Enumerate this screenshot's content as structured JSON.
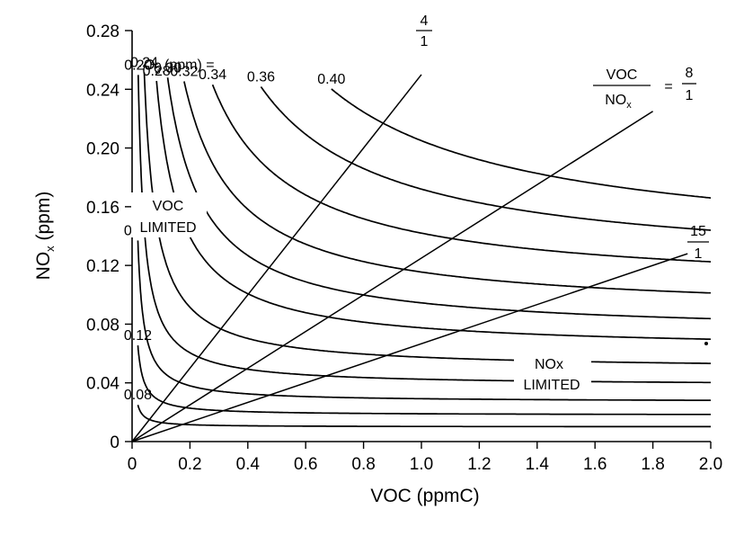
{
  "chart_data": {
    "type": "line",
    "title": "",
    "xlabel": "VOC (ppmC)",
    "ylabel_main": "NO",
    "ylabel_sub": "x",
    "ylabel_unit": " (ppm)",
    "xlim": [
      0,
      2.0
    ],
    "ylim": [
      0,
      0.28
    ],
    "xticks": [
      "0",
      "0.2",
      "0.4",
      "0.6",
      "0.8",
      "1.0",
      "1.2",
      "1.4",
      "1.6",
      "1.8",
      "2.0"
    ],
    "yticks": [
      "0",
      "0.04",
      "0.08",
      "0.12",
      "0.16",
      "0.20",
      "0.24",
      "0.28"
    ],
    "legend_prefix": "O",
    "legend_prefix_sub": "3",
    "legend_unit": " (ppm) = ",
    "isopleths": [
      {
        "name": "0.08",
        "asym_y": 0.01,
        "k": 0.0003
      },
      {
        "name": "0.12",
        "asym_y": 0.018,
        "k": 0.00095
      },
      {
        "name": "0.16",
        "asym_y": 0.027,
        "k": 0.0022
      },
      {
        "name": "0.20",
        "asym_y": 0.038,
        "k": 0.0045
      },
      {
        "name": "0.24",
        "asym_y": 0.049,
        "k": 0.0085
      },
      {
        "name": "0.28",
        "asym_y": 0.062,
        "k": 0.0155
      },
      {
        "name": "0.30",
        "asym_y": 0.073,
        "k": 0.0215
      },
      {
        "name": "0.32",
        "asym_y": 0.087,
        "k": 0.0285
      },
      {
        "name": "0.34",
        "asym_y": 0.103,
        "k": 0.039
      },
      {
        "name": "0.36",
        "asym_y": 0.116,
        "k": 0.056
      },
      {
        "name": "0.40",
        "asym_y": 0.127,
        "k": 0.078
      }
    ],
    "ratio_lines": [
      {
        "num": "4",
        "den": "1",
        "ratio": 4,
        "x_end": 1.0
      },
      {
        "name": "VOC",
        "name_den": "NO",
        "name_den_sub": "x",
        "eq": "=",
        "num": "8",
        "den": "1",
        "ratio": 8,
        "x_end": 1.8
      },
      {
        "num": "15",
        "den": "1",
        "ratio": 15,
        "x_end": 1.92
      }
    ],
    "regions": {
      "voc_limited": [
        "VOC",
        "LIMITED"
      ],
      "nox_limited": [
        "NOx",
        "LIMITED"
      ]
    }
  }
}
